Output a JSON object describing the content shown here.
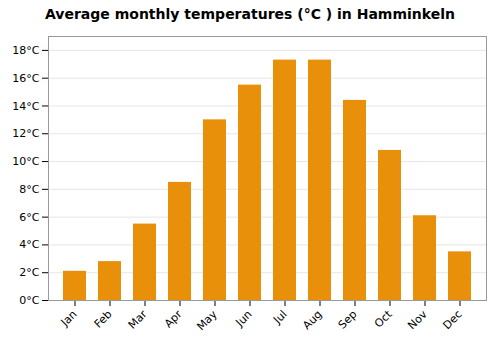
{
  "chart_data": {
    "type": "bar",
    "title": "Average monthly temperatures (°C ) in Hamminkeln",
    "categories": [
      "Jan",
      "Feb",
      "Mar",
      "Apr",
      "May",
      "Jun",
      "Jul",
      "Aug",
      "Sep",
      "Oct",
      "Nov",
      "Dec"
    ],
    "values": [
      2.1,
      2.8,
      5.5,
      8.5,
      13.0,
      15.5,
      17.3,
      17.3,
      14.4,
      10.8,
      6.1,
      3.5
    ],
    "color": "#E8900A",
    "ylim": [
      0,
      19
    ],
    "yticks": [
      {
        "value": 0,
        "label": "0°C"
      },
      {
        "value": 2,
        "label": "2°C"
      },
      {
        "value": 4,
        "label": "4°C"
      },
      {
        "value": 6,
        "label": "6°C"
      },
      {
        "value": 8,
        "label": "8°C"
      },
      {
        "value": 10,
        "label": "10°C"
      },
      {
        "value": 12,
        "label": "12°C"
      },
      {
        "value": 14,
        "label": "14°C"
      },
      {
        "value": 16,
        "label": "16°C"
      },
      {
        "value": 18,
        "label": "18°C"
      }
    ],
    "grid": true
  }
}
